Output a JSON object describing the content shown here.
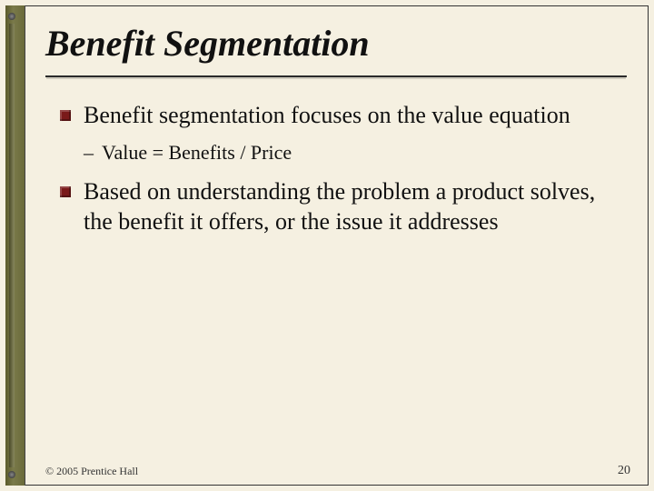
{
  "slide": {
    "title": "Benefit Segmentation",
    "bullets": [
      {
        "text": "Benefit segmentation focuses on the value equation",
        "sub": [
          "Value = Benefits / Price"
        ]
      },
      {
        "text": "Based on understanding the problem a product solves, the benefit it offers, or the issue it addresses",
        "sub": []
      }
    ],
    "footer": {
      "copyright": "© 2005 Prentice Hall",
      "page": "20"
    },
    "colors": {
      "background": "#f5f0e1",
      "bullet_square": "#7a1a1a",
      "border": "#333333",
      "strip": "#5a5a2a"
    }
  }
}
